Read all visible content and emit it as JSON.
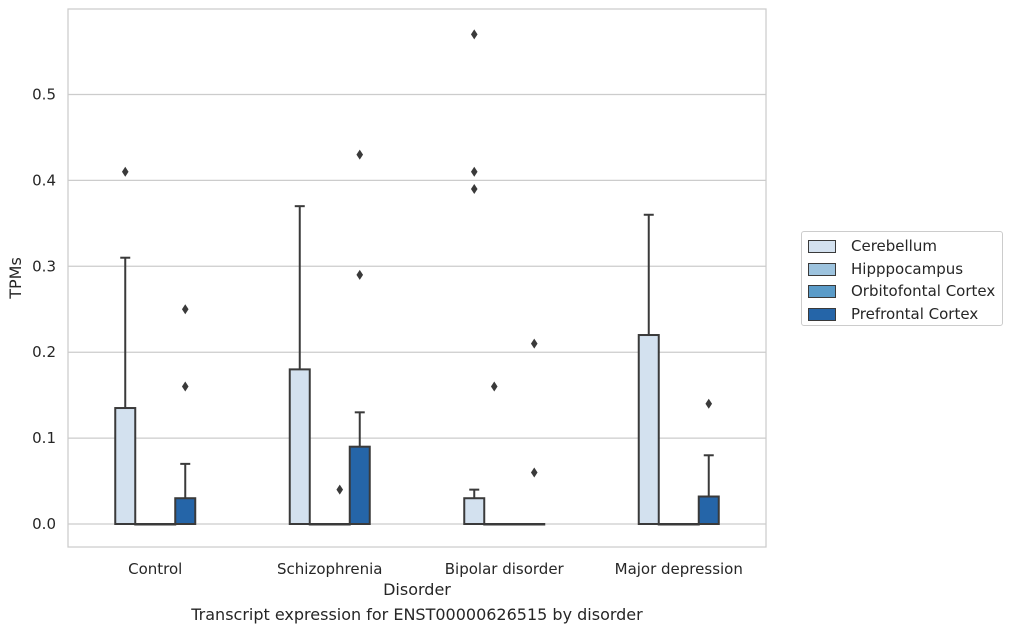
{
  "chart_data": {
    "type": "box",
    "xlabel": "Disorder",
    "ylabel": "TPMs",
    "caption": "Transcript expression for ENST00000626515 by disorder",
    "ylim": [
      -0.028,
      0.6
    ],
    "yticks": [
      "0.0",
      "0.1",
      "0.2",
      "0.3",
      "0.4",
      "0.5"
    ],
    "grid": "horizontal",
    "legend_position": "right",
    "categories": [
      "Control",
      "Schizophrenia",
      "Bipolar disorder",
      "Major depression"
    ],
    "series": [
      {
        "name": "Cerebellum",
        "color": "#d3e1ef",
        "boxes": [
          {
            "q1": 0,
            "median": 0,
            "q3": 0.135,
            "whisker_low": 0,
            "whisker_high": 0.31,
            "outliers": [
              0.41
            ]
          },
          {
            "q1": 0,
            "median": 0,
            "q3": 0.18,
            "whisker_low": 0,
            "whisker_high": 0.37,
            "outliers": []
          },
          {
            "q1": 0,
            "median": 0,
            "q3": 0.03,
            "whisker_low": 0,
            "whisker_high": 0.04,
            "outliers": [
              0.57,
              0.41,
              0.39
            ]
          },
          {
            "q1": 0,
            "median": 0,
            "q3": 0.22,
            "whisker_low": 0,
            "whisker_high": 0.36,
            "outliers": []
          }
        ]
      },
      {
        "name": "Hipppocampus",
        "color": "#9dc3de",
        "boxes": [
          {
            "q1": 0,
            "median": 0,
            "q3": 0,
            "whisker_low": 0,
            "whisker_high": 0,
            "outliers": []
          },
          {
            "q1": 0,
            "median": 0,
            "q3": 0,
            "whisker_low": 0,
            "whisker_high": 0,
            "outliers": []
          },
          {
            "q1": 0,
            "median": 0,
            "q3": 0,
            "whisker_low": 0,
            "whisker_high": 0,
            "outliers": [
              0.16
            ]
          },
          {
            "q1": 0,
            "median": 0,
            "q3": 0,
            "whisker_low": 0,
            "whisker_high": 0,
            "outliers": []
          }
        ]
      },
      {
        "name": "Orbitofontal Cortex",
        "color": "#5a9bc8",
        "boxes": [
          {
            "q1": 0,
            "median": 0,
            "q3": 0,
            "whisker_low": 0,
            "whisker_high": 0,
            "outliers": []
          },
          {
            "q1": 0,
            "median": 0,
            "q3": 0,
            "whisker_low": 0,
            "whisker_high": 0,
            "outliers": [
              0.04
            ]
          },
          {
            "q1": 0,
            "median": 0,
            "q3": 0,
            "whisker_low": 0,
            "whisker_high": 0,
            "outliers": []
          },
          {
            "q1": 0,
            "median": 0,
            "q3": 0,
            "whisker_low": 0,
            "whisker_high": 0,
            "outliers": []
          }
        ]
      },
      {
        "name": "Prefrontal Cortex",
        "color": "#2565a8",
        "boxes": [
          {
            "q1": 0,
            "median": 0,
            "q3": 0.03,
            "whisker_low": 0,
            "whisker_high": 0.07,
            "outliers": [
              0.25,
              0.16
            ]
          },
          {
            "q1": 0,
            "median": 0,
            "q3": 0.09,
            "whisker_low": 0,
            "whisker_high": 0.13,
            "outliers": [
              0.43,
              0.29
            ]
          },
          {
            "q1": 0,
            "median": 0,
            "q3": 0,
            "whisker_low": 0,
            "whisker_high": 0,
            "outliers": [
              0.21,
              0.06
            ]
          },
          {
            "q1": 0,
            "median": 0,
            "q3": 0.032,
            "whisker_low": 0,
            "whisker_high": 0.08,
            "outliers": [
              0.14
            ]
          }
        ]
      }
    ]
  }
}
